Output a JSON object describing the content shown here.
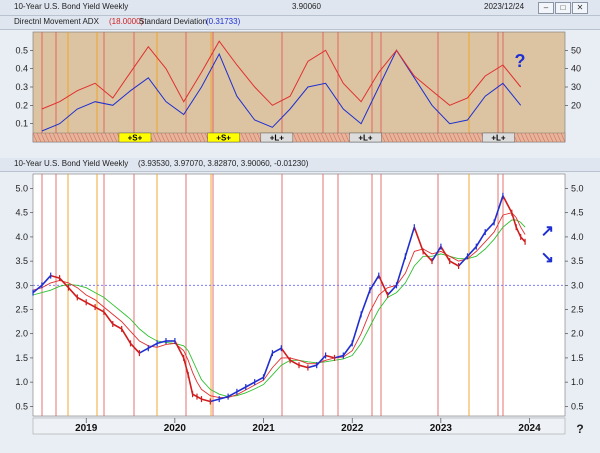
{
  "window": {
    "title": "10-Year U.S. Bond Yield Weekly",
    "last_value": "3.90060",
    "date": "2023/12/24"
  },
  "indicator_panel": {
    "header": "Directnl Movement ADX",
    "adx_param": "(18.0000)",
    "sd_label": "Standard Deviation",
    "sd_param": "(0.31733)",
    "question_mark": "?",
    "left_axis_ticks": [
      "0.5",
      "0.4",
      "0.3",
      "0.2",
      "0.1"
    ],
    "right_axis_ticks": [
      "50",
      "40",
      "30",
      "20"
    ],
    "signals": [
      "+S+",
      "+S+",
      "+L+",
      "+L+",
      "+L+"
    ]
  },
  "price_panel": {
    "header": "10-Year U.S. Bond Yield Weekly",
    "ohlc": "(3.93530, 3.97070, 3.82870, 3.90060, -0.01230)",
    "y_ticks": [
      "5.0",
      "4.5",
      "4.0",
      "3.5",
      "3.0",
      "2.5",
      "2.0",
      "1.5",
      "1.0",
      "0.5"
    ],
    "x_ticks": [
      "2019",
      "2020",
      "2021",
      "2022",
      "2023",
      "2024"
    ],
    "corner_mark": "?"
  },
  "colors": {
    "up_bars": "#1f2fd0",
    "down_bars": "#d01c1c",
    "indicator_bg": "#dcc4a2",
    "vertical_red": "#e05050",
    "vertical_orange": "#f0a020",
    "ma_short": "#e03030",
    "ma_long": "#30c030",
    "reference_line": "#6a6aff"
  },
  "chart_data": [
    {
      "type": "line",
      "title": "Directnl Movement ADX (18.0000), Standard Deviation (0.31733)",
      "x": [
        2018.5,
        2018.7,
        2018.9,
        2019.1,
        2019.3,
        2019.5,
        2019.7,
        2019.9,
        2020.1,
        2020.3,
        2020.5,
        2020.7,
        2020.9,
        2021.1,
        2021.3,
        2021.5,
        2021.7,
        2021.9,
        2022.1,
        2022.3,
        2022.5,
        2022.7,
        2022.9,
        2023.1,
        2023.3,
        2023.5,
        2023.7,
        2023.9
      ],
      "series": [
        {
          "name": "Directnl Movement ADX",
          "axis": "right",
          "values": [
            18,
            22,
            28,
            32,
            24,
            38,
            52,
            40,
            22,
            38,
            55,
            42,
            30,
            20,
            25,
            44,
            50,
            32,
            22,
            38,
            50,
            36,
            28,
            20,
            24,
            36,
            42,
            30
          ]
        },
        {
          "name": "Standard Deviation",
          "axis": "left",
          "values": [
            0.06,
            0.1,
            0.18,
            0.22,
            0.2,
            0.28,
            0.35,
            0.22,
            0.15,
            0.3,
            0.48,
            0.25,
            0.12,
            0.08,
            0.18,
            0.3,
            0.32,
            0.18,
            0.1,
            0.3,
            0.5,
            0.35,
            0.2,
            0.1,
            0.12,
            0.25,
            0.32,
            0.2
          ]
        }
      ],
      "ylim_left": [
        0,
        0.6
      ],
      "ylim_right": [
        0,
        60
      ],
      "signals": [
        {
          "label": "+S+",
          "x": 2019.55
        },
        {
          "label": "+S+",
          "x": 2020.55
        },
        {
          "label": "+L+",
          "x": 2021.15
        },
        {
          "label": "+L+",
          "x": 2022.15
        },
        {
          "label": "+L+",
          "x": 2023.65
        }
      ]
    },
    {
      "type": "line",
      "title": "10-Year U.S. Bond Yield Weekly",
      "x": [
        2018.4,
        2018.5,
        2018.6,
        2018.7,
        2018.8,
        2018.9,
        2019.0,
        2019.1,
        2019.2,
        2019.3,
        2019.4,
        2019.5,
        2019.6,
        2019.7,
        2019.8,
        2019.9,
        2020.0,
        2020.1,
        2020.15,
        2020.2,
        2020.25,
        2020.3,
        2020.4,
        2020.5,
        2020.6,
        2020.7,
        2020.8,
        2020.9,
        2021.0,
        2021.1,
        2021.2,
        2021.3,
        2021.4,
        2021.5,
        2021.6,
        2021.7,
        2021.8,
        2021.9,
        2022.0,
        2022.1,
        2022.2,
        2022.3,
        2022.4,
        2022.5,
        2022.6,
        2022.7,
        2022.8,
        2022.9,
        2023.0,
        2023.1,
        2023.2,
        2023.3,
        2023.4,
        2023.5,
        2023.6,
        2023.7,
        2023.8,
        2023.85,
        2023.9,
        2023.95
      ],
      "series": [
        {
          "name": "10-Year U.S. Bond Yield Weekly",
          "values": [
            2.85,
            3.0,
            3.2,
            3.15,
            2.95,
            2.75,
            2.65,
            2.55,
            2.45,
            2.2,
            2.1,
            1.8,
            1.6,
            1.7,
            1.8,
            1.85,
            1.85,
            1.5,
            1.15,
            0.75,
            0.7,
            0.65,
            0.6,
            0.65,
            0.7,
            0.8,
            0.9,
            1.0,
            1.1,
            1.6,
            1.7,
            1.45,
            1.35,
            1.3,
            1.35,
            1.55,
            1.5,
            1.55,
            1.8,
            2.4,
            2.9,
            3.2,
            2.8,
            3.0,
            3.6,
            4.2,
            3.7,
            3.5,
            3.8,
            3.5,
            3.4,
            3.6,
            3.8,
            4.1,
            4.3,
            4.85,
            4.5,
            4.2,
            4.0,
            3.9
          ]
        },
        {
          "name": "short moving average",
          "values": [
            2.9,
            2.95,
            3.05,
            3.1,
            3.05,
            2.95,
            2.8,
            2.7,
            2.55,
            2.4,
            2.25,
            2.05,
            1.85,
            1.75,
            1.72,
            1.78,
            1.8,
            1.65,
            1.45,
            1.2,
            1.0,
            0.85,
            0.72,
            0.68,
            0.68,
            0.74,
            0.84,
            0.94,
            1.04,
            1.3,
            1.5,
            1.5,
            1.45,
            1.38,
            1.38,
            1.45,
            1.5,
            1.52,
            1.65,
            2.0,
            2.45,
            2.8,
            2.95,
            3.0,
            3.25,
            3.7,
            3.75,
            3.65,
            3.7,
            3.6,
            3.5,
            3.55,
            3.7,
            3.9,
            4.1,
            4.45,
            4.5,
            4.4,
            4.2,
            4.05
          ]
        },
        {
          "name": "long moving average",
          "values": [
            2.8,
            2.85,
            2.9,
            2.98,
            3.02,
            3.0,
            2.95,
            2.85,
            2.75,
            2.6,
            2.45,
            2.3,
            2.1,
            1.95,
            1.85,
            1.82,
            1.8,
            1.75,
            1.65,
            1.45,
            1.25,
            1.05,
            0.85,
            0.75,
            0.7,
            0.72,
            0.78,
            0.86,
            0.95,
            1.15,
            1.35,
            1.45,
            1.45,
            1.42,
            1.4,
            1.42,
            1.45,
            1.48,
            1.55,
            1.8,
            2.15,
            2.5,
            2.75,
            2.85,
            3.05,
            3.4,
            3.6,
            3.6,
            3.65,
            3.6,
            3.55,
            3.55,
            3.6,
            3.75,
            3.95,
            4.2,
            4.35,
            4.35,
            4.3,
            4.2
          ]
        }
      ],
      "reference_line": 3.0,
      "ylim": [
        0.3,
        5.3
      ],
      "xlim": [
        2018.4,
        2024.4
      ],
      "arrows": [
        {
          "direction": "up",
          "x": 2024.2,
          "y": 4.1
        },
        {
          "direction": "down",
          "x": 2024.2,
          "y": 3.55
        }
      ]
    }
  ]
}
